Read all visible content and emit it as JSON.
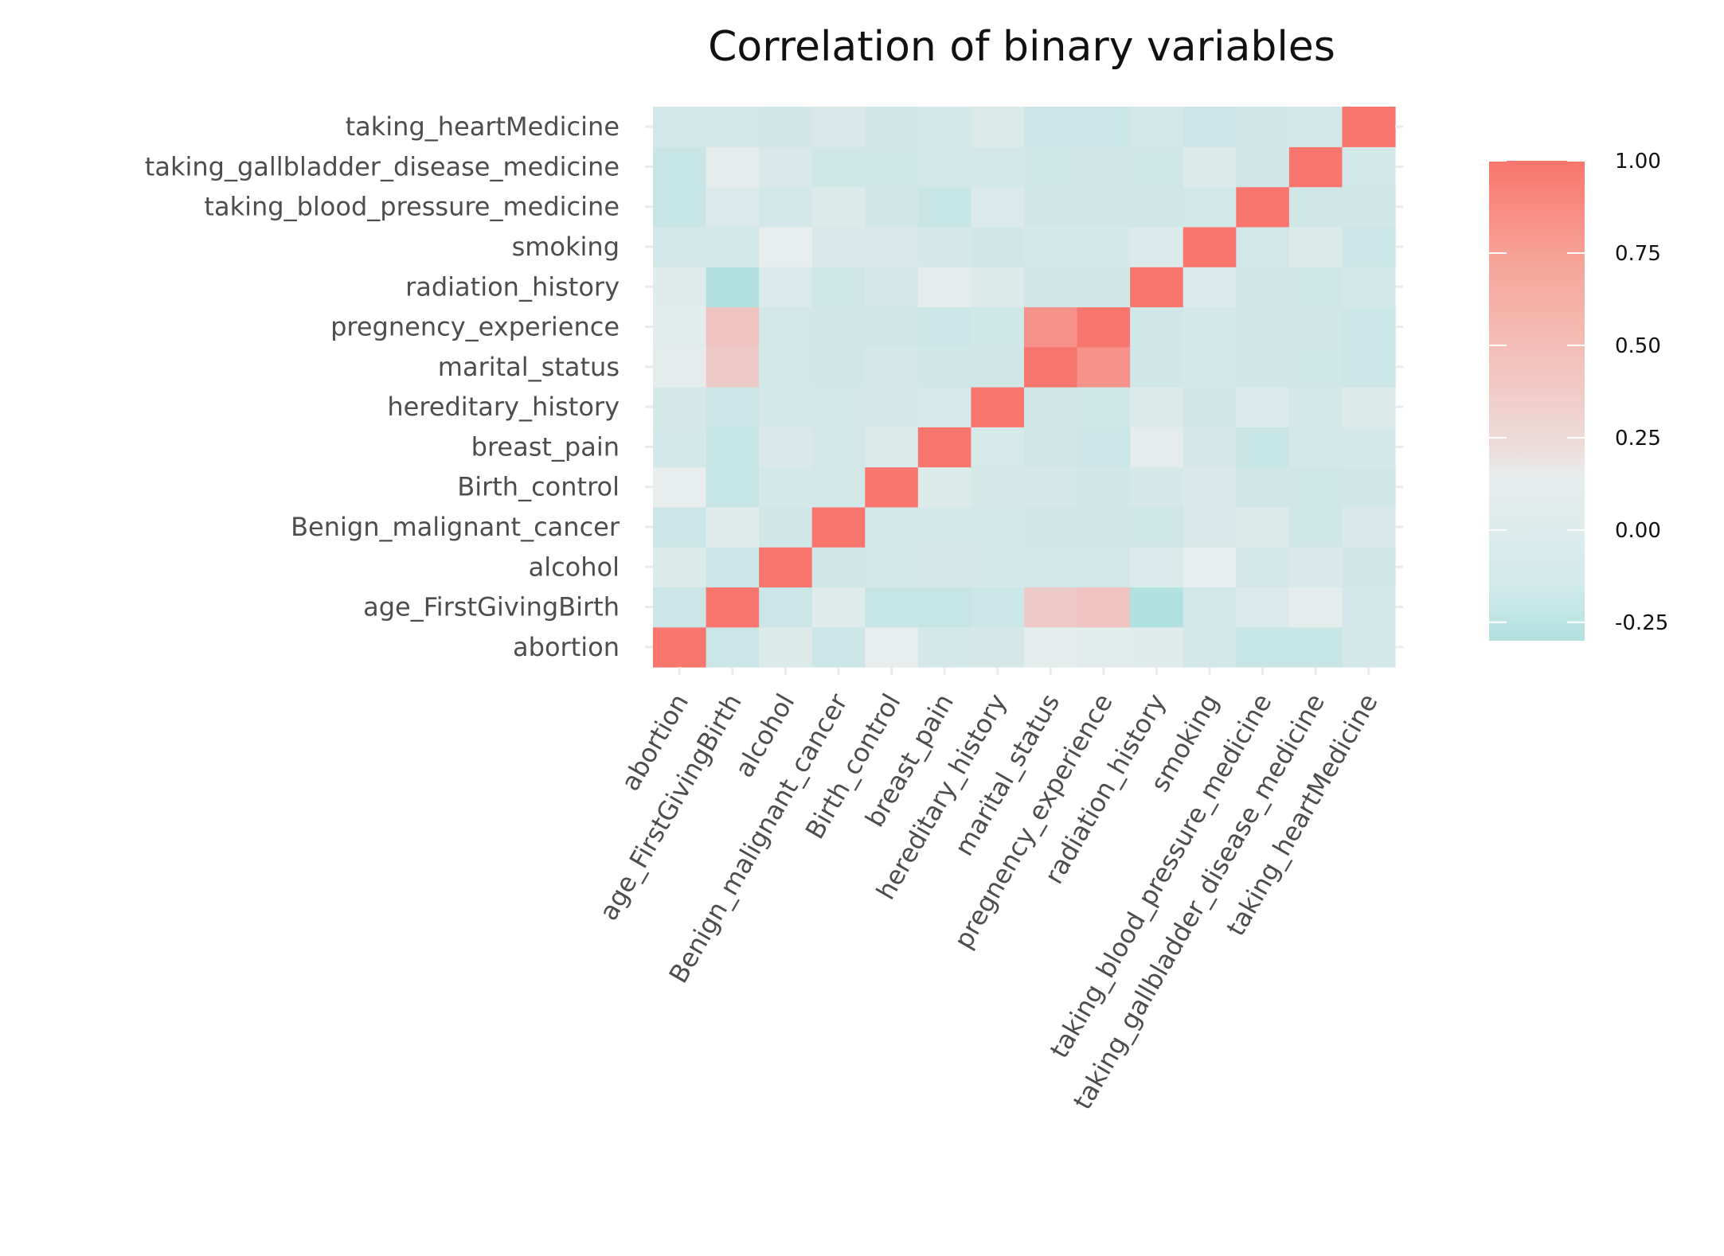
{
  "chart_data": {
    "type": "heatmap",
    "title": "Correlation of binary variables",
    "x_categories": [
      "abortion",
      "age_FirstGivingBirth",
      "alcohol",
      "Benign_malignant_cancer",
      "Birth_control",
      "breast_pain",
      "hereditary_history",
      "marital_status",
      "pregnency_experience",
      "radiation_history",
      "smoking",
      "taking_blood_pressure_medicine",
      "taking_gallbladder_disease_medicine",
      "taking_heartMedicine"
    ],
    "y_categories": [
      "abortion",
      "age_FirstGivingBirth",
      "alcohol",
      "Benign_malignant_cancer",
      "Birth_control",
      "breast_pain",
      "hereditary_history",
      "marital_status",
      "pregnency_experience",
      "radiation_history",
      "smoking",
      "taking_blood_pressure_medicine",
      "taking_gallbladder_disease_medicine",
      "taking_heartMedicine"
    ],
    "values": [
      [
        1.0,
        -0.1,
        0.05,
        -0.1,
        0.15,
        -0.03,
        -0.02,
        0.12,
        0.1,
        0.08,
        -0.04,
        -0.12,
        -0.12,
        -0.04
      ],
      [
        -0.1,
        1.0,
        -0.1,
        0.08,
        -0.15,
        -0.15,
        -0.1,
        0.4,
        0.45,
        -0.3,
        -0.04,
        0.03,
        0.12,
        -0.04
      ],
      [
        0.05,
        -0.1,
        1.0,
        -0.06,
        -0.03,
        -0.02,
        -0.03,
        -0.04,
        -0.04,
        0.04,
        0.15,
        -0.04,
        0.02,
        -0.05
      ],
      [
        -0.1,
        0.08,
        -0.06,
        1.0,
        -0.04,
        -0.03,
        -0.04,
        -0.05,
        -0.06,
        -0.08,
        0.02,
        0.06,
        -0.08,
        0.02
      ],
      [
        0.15,
        -0.15,
        -0.03,
        -0.04,
        1.0,
        0.05,
        -0.01,
        -0.02,
        -0.05,
        -0.01,
        0.02,
        -0.05,
        -0.08,
        -0.05
      ],
      [
        -0.03,
        -0.15,
        0.02,
        -0.04,
        0.05,
        1.0,
        0.0,
        -0.06,
        -0.1,
        0.12,
        -0.01,
        -0.12,
        -0.04,
        -0.03
      ],
      [
        -0.02,
        -0.1,
        -0.03,
        -0.04,
        -0.01,
        0.0,
        1.0,
        -0.05,
        -0.07,
        0.05,
        -0.06,
        0.03,
        -0.04,
        0.06
      ],
      [
        0.12,
        0.4,
        -0.04,
        -0.05,
        -0.02,
        -0.06,
        -0.05,
        1.0,
        0.8,
        -0.06,
        -0.03,
        -0.06,
        -0.07,
        -0.1
      ],
      [
        0.1,
        0.45,
        -0.04,
        -0.06,
        -0.05,
        -0.1,
        -0.07,
        0.8,
        1.0,
        -0.05,
        -0.03,
        -0.05,
        -0.06,
        -0.1
      ],
      [
        0.08,
        -0.3,
        0.04,
        -0.08,
        -0.01,
        0.12,
        0.05,
        -0.06,
        -0.05,
        1.0,
        0.04,
        -0.06,
        -0.08,
        -0.04
      ],
      [
        -0.04,
        -0.04,
        0.15,
        0.02,
        0.02,
        -0.01,
        -0.06,
        -0.03,
        -0.03,
        0.04,
        1.0,
        -0.04,
        0.06,
        -0.1
      ],
      [
        -0.12,
        0.03,
        -0.04,
        0.06,
        -0.05,
        -0.12,
        0.03,
        -0.06,
        -0.05,
        -0.06,
        -0.04,
        1.0,
        -0.05,
        -0.05
      ],
      [
        -0.12,
        0.12,
        0.02,
        -0.08,
        -0.08,
        -0.04,
        -0.04,
        -0.07,
        -0.06,
        -0.08,
        0.06,
        -0.05,
        1.0,
        -0.04
      ],
      [
        -0.04,
        -0.04,
        -0.05,
        0.02,
        -0.05,
        -0.03,
        0.06,
        -0.1,
        -0.1,
        -0.04,
        -0.1,
        -0.05,
        -0.04,
        1.0
      ]
    ],
    "scale": {
      "min": -0.3,
      "max": 1.0,
      "low_color": "#b3e0e0",
      "mid_color": "#e8eded",
      "high_color": "#f8766d",
      "mid_value": 0.15
    },
    "legend": {
      "position": "right",
      "ticks": [
        1.0,
        0.75,
        0.5,
        0.25,
        0.0,
        -0.25
      ],
      "tick_labels": [
        "1.00",
        "0.75",
        "0.50",
        "0.25",
        "0.00",
        "-0.25"
      ]
    },
    "grid": false
  }
}
